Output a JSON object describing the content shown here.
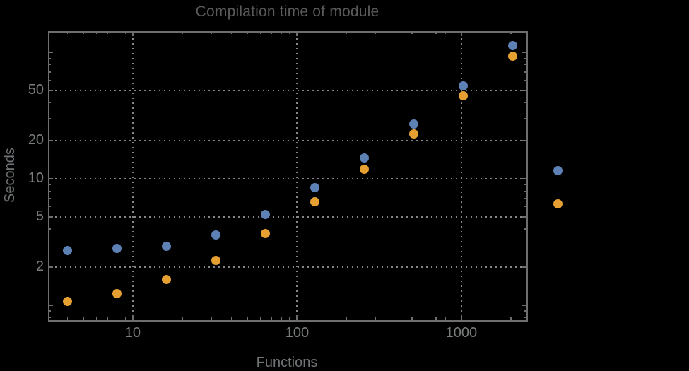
{
  "colors": {
    "background": "#000000",
    "frame": "#6e6e6e",
    "grid": "#868686",
    "tick_label": "#7a7d7e",
    "title": "#5a5a5a",
    "axis_label": "#717476",
    "series1": "#5E81B5",
    "series2": "#E5A031"
  },
  "chart_data": {
    "type": "scatter",
    "title": "Compilation time of module",
    "xlabel": "Functions",
    "ylabel": "Seconds",
    "x_scale": "log",
    "y_scale": "log",
    "x": [
      4,
      8,
      16,
      32,
      64,
      128,
      256,
      512,
      1024,
      2048
    ],
    "series": [
      {
        "name": "series-1",
        "color": "#5E81B5",
        "values": [
          2.7,
          2.8,
          2.9,
          3.6,
          5.2,
          8.5,
          14.5,
          27,
          54,
          113
        ]
      },
      {
        "name": "series-2",
        "color": "#E5A031",
        "values": [
          1.07,
          1.23,
          1.6,
          2.25,
          3.7,
          6.6,
          11.8,
          22.7,
          45.5,
          93
        ]
      }
    ],
    "xlim": [
      3.05,
      2490
    ],
    "ylim": [
      0.76,
      147
    ],
    "x_ticks_labeled": [
      10,
      100,
      1000
    ],
    "x_tick_labels": [
      "10",
      "100",
      "1000"
    ],
    "y_ticks_labeled": [
      2,
      5,
      10,
      20,
      50
    ],
    "y_tick_labels": [
      "2",
      "5",
      "10",
      "20",
      "50"
    ],
    "y_ticks_unlabeled_major": [
      1,
      100
    ],
    "grid_x": [
      10,
      100,
      1000
    ],
    "grid_y": [
      2,
      5,
      10,
      20,
      50
    ],
    "grid_style": "dotted",
    "legend_position": "right",
    "legend": {
      "labels_visible": false,
      "markers": [
        {
          "series": "series-1",
          "color": "#5E81B5"
        },
        {
          "series": "series-2",
          "color": "#E5A031"
        }
      ]
    }
  }
}
